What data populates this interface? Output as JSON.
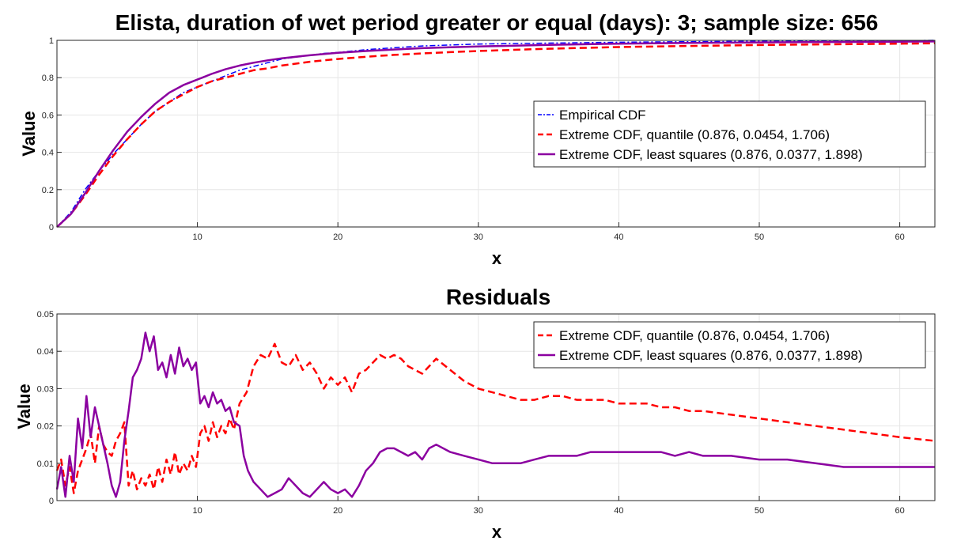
{
  "chart_data": [
    {
      "type": "line",
      "title": "Elista, duration of wet period greater or equal (days): 3; sample size: 656",
      "xlabel": "x",
      "ylabel": "Value",
      "xlim": [
        0,
        62.5
      ],
      "ylim": [
        0,
        1
      ],
      "xticks": [
        10,
        20,
        30,
        40,
        50,
        60
      ],
      "yticks": [
        0,
        0.2,
        0.4,
        0.6,
        0.8,
        1
      ],
      "grid": true,
      "legend_location": "right",
      "series": [
        {
          "name": "Empirical CDF",
          "color": "#0000ff",
          "style": "dashdot",
          "x": [
            0,
            1,
            2,
            3,
            4,
            5,
            6,
            7,
            8,
            9,
            10,
            11,
            12,
            13,
            14,
            15,
            16,
            17,
            18,
            19,
            20,
            22,
            24,
            26,
            28,
            30,
            35,
            40,
            45,
            50,
            55,
            60,
            62.5
          ],
          "y": [
            0,
            0.08,
            0.2,
            0.3,
            0.39,
            0.47,
            0.55,
            0.62,
            0.67,
            0.72,
            0.75,
            0.78,
            0.81,
            0.84,
            0.86,
            0.88,
            0.9,
            0.91,
            0.92,
            0.93,
            0.935,
            0.95,
            0.96,
            0.97,
            0.975,
            0.98,
            0.985,
            0.99,
            0.993,
            0.995,
            0.997,
            0.998,
            1
          ]
        },
        {
          "name": "Extreme CDF, quantile (0.876, 0.0454, 1.706)",
          "color": "#ff0000",
          "style": "dashed",
          "x": [
            0,
            1,
            2,
            3,
            4,
            5,
            6,
            7,
            8,
            9,
            10,
            11,
            12,
            13,
            14,
            15,
            16,
            18,
            20,
            22,
            24,
            26,
            28,
            30,
            35,
            40,
            45,
            50,
            55,
            60,
            62.5
          ],
          "y": [
            0,
            0.07,
            0.17,
            0.28,
            0.38,
            0.47,
            0.55,
            0.62,
            0.67,
            0.71,
            0.75,
            0.78,
            0.8,
            0.82,
            0.84,
            0.85,
            0.865,
            0.885,
            0.9,
            0.912,
            0.922,
            0.93,
            0.937,
            0.943,
            0.955,
            0.964,
            0.97,
            0.975,
            0.979,
            0.982,
            0.984
          ]
        },
        {
          "name": "Extreme CDF, least squares (0.876, 0.0377, 1.898)",
          "color": "#8b00a0",
          "style": "solid",
          "x": [
            0,
            1,
            2,
            3,
            4,
            5,
            6,
            7,
            8,
            9,
            10,
            11,
            12,
            13,
            14,
            15,
            16,
            18,
            20,
            22,
            24,
            26,
            28,
            30,
            35,
            40,
            45,
            50,
            55,
            60,
            62.5
          ],
          "y": [
            0,
            0.07,
            0.18,
            0.3,
            0.41,
            0.51,
            0.59,
            0.66,
            0.72,
            0.76,
            0.79,
            0.82,
            0.845,
            0.865,
            0.88,
            0.893,
            0.904,
            0.92,
            0.933,
            0.943,
            0.951,
            0.958,
            0.963,
            0.967,
            0.976,
            0.982,
            0.986,
            0.989,
            0.991,
            0.993,
            0.994
          ]
        }
      ]
    },
    {
      "type": "line",
      "title": "Residuals",
      "xlabel": "x",
      "ylabel": "Value",
      "xlim": [
        0,
        62.5
      ],
      "ylim": [
        0,
        0.05
      ],
      "xticks": [
        10,
        20,
        30,
        40,
        50,
        60
      ],
      "yticks": [
        0,
        0.01,
        0.02,
        0.03,
        0.04,
        0.05
      ],
      "grid": true,
      "legend_location": "top-right",
      "series": [
        {
          "name": "Extreme CDF, quantile (0.876, 0.0454, 1.706)",
          "color": "#ff0000",
          "style": "dashed",
          "x": [
            0,
            0.3,
            0.6,
            0.9,
            1.2,
            1.5,
            1.8,
            2.1,
            2.4,
            2.7,
            3.0,
            3.3,
            3.6,
            3.9,
            4.2,
            4.5,
            4.8,
            5.1,
            5.4,
            5.7,
            6.0,
            6.3,
            6.6,
            6.9,
            7.2,
            7.5,
            7.8,
            8.1,
            8.4,
            8.7,
            9.0,
            9.3,
            9.6,
            9.9,
            10.2,
            10.5,
            10.8,
            11.1,
            11.4,
            11.7,
            12.0,
            12.3,
            12.6,
            13.0,
            13.5,
            14.0,
            14.5,
            15.0,
            15.5,
            16.0,
            16.5,
            17.0,
            17.5,
            18.0,
            18.5,
            19.0,
            19.5,
            20.0,
            20.5,
            21.0,
            21.5,
            22.0,
            22.5,
            23.0,
            23.5,
            24.0,
            24.5,
            25.0,
            25.5,
            26.0,
            26.5,
            27.0,
            28.0,
            29.0,
            30.0,
            31.0,
            32.0,
            33.0,
            34.0,
            35.0,
            36.0,
            37.0,
            38.0,
            39.0,
            40.0,
            41.0,
            42.0,
            43.0,
            44.0,
            45.0,
            46.0,
            48.0,
            50.0,
            52.0,
            54.0,
            56.0,
            58.0,
            60.0,
            62.5
          ],
          "y": [
            0.008,
            0.011,
            0.004,
            0.009,
            0.002,
            0.008,
            0.011,
            0.014,
            0.018,
            0.01,
            0.02,
            0.015,
            0.013,
            0.012,
            0.016,
            0.018,
            0.021,
            0.004,
            0.008,
            0.003,
            0.006,
            0.004,
            0.007,
            0.003,
            0.009,
            0.005,
            0.011,
            0.007,
            0.013,
            0.007,
            0.01,
            0.008,
            0.012,
            0.009,
            0.018,
            0.02,
            0.016,
            0.021,
            0.017,
            0.02,
            0.018,
            0.022,
            0.019,
            0.026,
            0.029,
            0.036,
            0.039,
            0.038,
            0.042,
            0.037,
            0.036,
            0.039,
            0.035,
            0.037,
            0.034,
            0.03,
            0.033,
            0.031,
            0.033,
            0.029,
            0.034,
            0.035,
            0.037,
            0.039,
            0.038,
            0.039,
            0.038,
            0.036,
            0.035,
            0.034,
            0.036,
            0.038,
            0.035,
            0.032,
            0.03,
            0.029,
            0.028,
            0.027,
            0.027,
            0.028,
            0.028,
            0.027,
            0.027,
            0.027,
            0.026,
            0.026,
            0.026,
            0.025,
            0.025,
            0.024,
            0.024,
            0.023,
            0.022,
            0.021,
            0.02,
            0.019,
            0.018,
            0.017,
            0.016
          ]
        },
        {
          "name": "Extreme CDF, least squares (0.876, 0.0377, 1.898)",
          "color": "#8b00a0",
          "style": "solid",
          "x": [
            0,
            0.3,
            0.6,
            0.9,
            1.2,
            1.5,
            1.8,
            2.1,
            2.4,
            2.7,
            3.0,
            3.3,
            3.6,
            3.9,
            4.2,
            4.5,
            4.8,
            5.1,
            5.4,
            5.7,
            6.0,
            6.3,
            6.6,
            6.9,
            7.2,
            7.5,
            7.8,
            8.1,
            8.4,
            8.7,
            9.0,
            9.3,
            9.6,
            9.9,
            10.2,
            10.5,
            10.8,
            11.1,
            11.4,
            11.7,
            12.0,
            12.3,
            12.6,
            13.0,
            13.3,
            13.6,
            14.0,
            14.5,
            15.0,
            15.5,
            16.0,
            16.5,
            17.0,
            17.5,
            18.0,
            18.5,
            19.0,
            19.5,
            20.0,
            20.5,
            21.0,
            21.5,
            22.0,
            22.5,
            23.0,
            23.5,
            24.0,
            24.5,
            25.0,
            25.5,
            26.0,
            26.5,
            27.0,
            28.0,
            29.0,
            30.0,
            31.0,
            32.0,
            33.0,
            34.0,
            35.0,
            36.0,
            37.0,
            38.0,
            39.0,
            40.0,
            41.0,
            42.0,
            43.0,
            44.0,
            45.0,
            46.0,
            48.0,
            50.0,
            52.0,
            54.0,
            56.0,
            58.0,
            60.0,
            62.5
          ],
          "y": [
            0.003,
            0.009,
            0.001,
            0.012,
            0.005,
            0.022,
            0.014,
            0.028,
            0.017,
            0.025,
            0.02,
            0.015,
            0.01,
            0.004,
            0.001,
            0.005,
            0.016,
            0.024,
            0.033,
            0.035,
            0.038,
            0.045,
            0.04,
            0.044,
            0.035,
            0.037,
            0.033,
            0.039,
            0.034,
            0.041,
            0.036,
            0.038,
            0.035,
            0.037,
            0.026,
            0.028,
            0.025,
            0.029,
            0.026,
            0.027,
            0.024,
            0.025,
            0.021,
            0.02,
            0.012,
            0.008,
            0.005,
            0.003,
            0.001,
            0.002,
            0.003,
            0.006,
            0.004,
            0.002,
            0.001,
            0.003,
            0.005,
            0.003,
            0.002,
            0.003,
            0.001,
            0.004,
            0.008,
            0.01,
            0.013,
            0.014,
            0.014,
            0.013,
            0.012,
            0.013,
            0.011,
            0.014,
            0.015,
            0.013,
            0.012,
            0.011,
            0.01,
            0.01,
            0.01,
            0.011,
            0.012,
            0.012,
            0.012,
            0.013,
            0.013,
            0.013,
            0.013,
            0.013,
            0.013,
            0.012,
            0.013,
            0.012,
            0.012,
            0.011,
            0.011,
            0.01,
            0.009,
            0.009,
            0.009,
            0.009
          ]
        }
      ]
    }
  ]
}
